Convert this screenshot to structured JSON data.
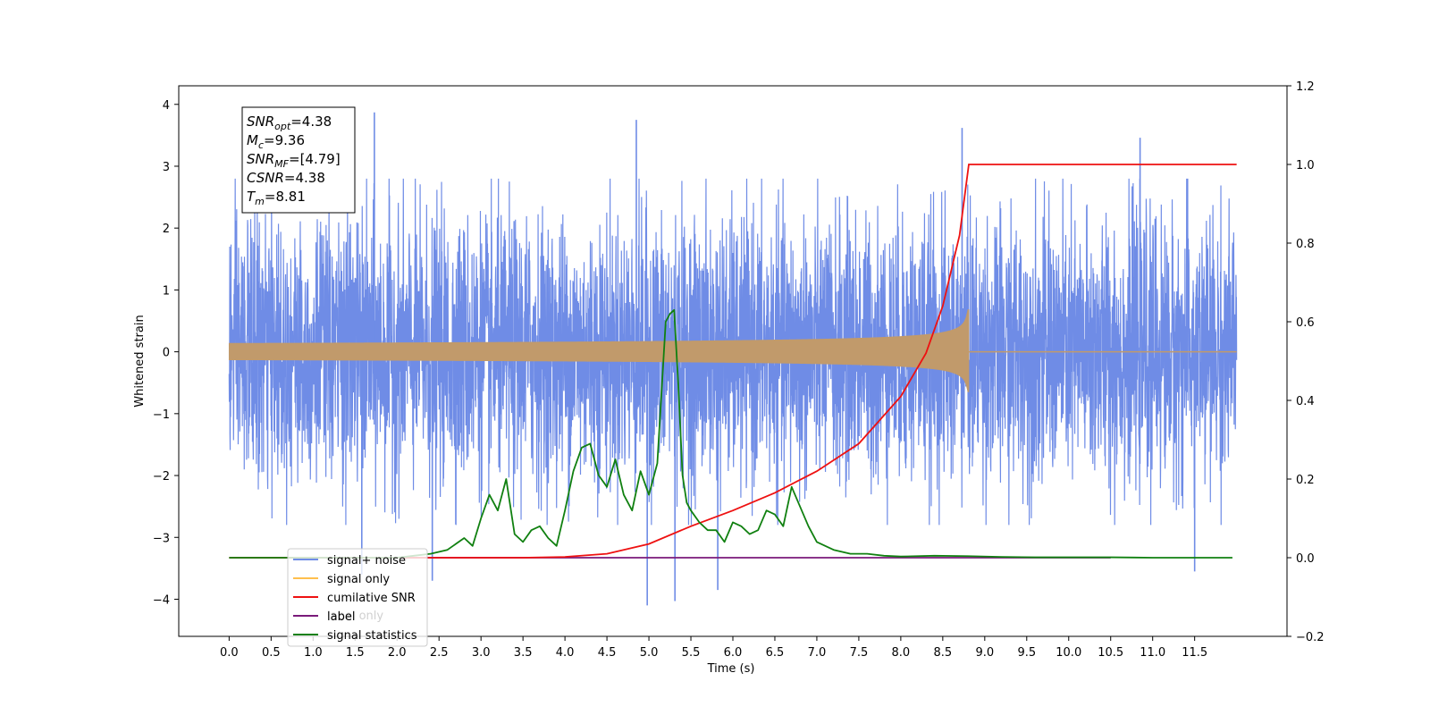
{
  "chart_data": {
    "type": "line",
    "xlabel": "Time (s)",
    "ylabel": "Whitened strain",
    "xlim": [
      -0.6,
      12.6
    ],
    "ylim": [
      -4.6,
      4.3
    ],
    "ylim_right": [
      -0.2,
      1.2
    ],
    "x_ticks": [
      0.0,
      0.5,
      1.0,
      1.5,
      2.0,
      2.5,
      3.0,
      3.5,
      4.0,
      4.5,
      5.0,
      5.5,
      6.0,
      6.5,
      7.0,
      7.5,
      8.0,
      8.5,
      9.0,
      9.5,
      10.0,
      10.5,
      11.0,
      11.5
    ],
    "x_tick_labels": [
      "0.0",
      "0.5",
      "1.0",
      "1.5",
      "2.0",
      "2.5",
      "3.0",
      "3.5",
      "4.0",
      "4.5",
      "5.0",
      "5.5",
      "6.0",
      "6.5",
      "7.0",
      "7.5",
      "8.0",
      "8.5",
      "9.0",
      "9.5",
      "10.0",
      "10.5",
      "11.0",
      "11.5"
    ],
    "y_ticks": [
      -4,
      -3,
      -2,
      -1,
      0,
      1,
      2,
      3,
      4
    ],
    "y_tick_labels": [
      "−4",
      "−3",
      "−2",
      "−1",
      "0",
      "1",
      "2",
      "3",
      "4"
    ],
    "y_right_ticks": [
      -0.2,
      0.0,
      0.2,
      0.4,
      0.6,
      0.8,
      1.0,
      1.2
    ],
    "y_right_tick_labels": [
      "−0.2",
      "0.0",
      "0.2",
      "0.4",
      "0.6",
      "0.8",
      "1.0",
      "1.2"
    ],
    "grid": false,
    "legend_position": "lower-left",
    "annotation": [
      {
        "base": "SNR",
        "sub": "opt",
        "value": "=4.38"
      },
      {
        "base": "M",
        "sub": "c",
        "value": "=9.36"
      },
      {
        "base": "SNR",
        "sub": "MF",
        "value": "=[4.79]"
      },
      {
        "base": "CSNR",
        "sub": "",
        "value": "=4.38"
      },
      {
        "base": "T",
        "sub": "m",
        "value": "=8.81"
      }
    ],
    "series": [
      {
        "name": "signal+ noise",
        "axis": "left",
        "color": "#6f8ce6",
        "x_range": [
          0.0,
          12.0
        ],
        "typical_range": [
          -2.5,
          2.5
        ],
        "extremes": [
          [
            1.73,
            3.87
          ],
          [
            4.85,
            3.75
          ],
          [
            8.73,
            3.62
          ],
          [
            10.85,
            3.46
          ],
          [
            4.98,
            -4.1
          ],
          [
            5.31,
            -4.03
          ],
          [
            5.82,
            -3.85
          ],
          [
            11.5,
            -3.55
          ],
          [
            2.42,
            -3.7
          ],
          [
            1.58,
            -3.6
          ]
        ]
      },
      {
        "name": "signal only",
        "axis": "left",
        "color": "#ffbf4d",
        "x_range": [
          0.0,
          12.0
        ],
        "merger_time": 8.81,
        "peak_amplitude": 0.68
      },
      {
        "name": "cumilative SNR",
        "axis": "right",
        "color": "#ee1111",
        "x": [
          0.0,
          3.5,
          4.0,
          4.5,
          5.0,
          5.5,
          6.0,
          6.5,
          7.0,
          7.5,
          8.0,
          8.3,
          8.5,
          8.7,
          8.81,
          9.0,
          12.0
        ],
        "y": [
          0.0,
          0.0,
          0.002,
          0.01,
          0.035,
          0.08,
          0.12,
          0.165,
          0.22,
          0.29,
          0.41,
          0.52,
          0.64,
          0.82,
          1.0,
          1.0,
          1.0
        ]
      },
      {
        "name": "label",
        "axis": "right",
        "color": "#7a1a7a",
        "x": [
          2.0,
          10.5
        ],
        "y": [
          0.0,
          0.0
        ]
      },
      {
        "name": "signal statistics",
        "axis": "right",
        "color": "#108010",
        "x": [
          0.0,
          2.0,
          2.2,
          2.4,
          2.6,
          2.8,
          2.9,
          3.0,
          3.1,
          3.2,
          3.3,
          3.4,
          3.5,
          3.6,
          3.7,
          3.8,
          3.9,
          4.0,
          4.1,
          4.2,
          4.3,
          4.4,
          4.5,
          4.6,
          4.7,
          4.8,
          4.9,
          5.0,
          5.1,
          5.2,
          5.25,
          5.3,
          5.35,
          5.4,
          5.45,
          5.5,
          5.6,
          5.7,
          5.8,
          5.9,
          6.0,
          6.1,
          6.2,
          6.3,
          6.4,
          6.5,
          6.6,
          6.7,
          6.8,
          6.9,
          7.0,
          7.1,
          7.2,
          7.4,
          7.6,
          7.8,
          8.0,
          8.4,
          8.8,
          9.2,
          9.6,
          10.0,
          10.5,
          11.0,
          11.5,
          11.95
        ],
        "y": [
          0.0,
          0.0,
          0.005,
          0.01,
          0.02,
          0.05,
          0.03,
          0.1,
          0.16,
          0.12,
          0.2,
          0.06,
          0.04,
          0.07,
          0.08,
          0.05,
          0.03,
          0.12,
          0.22,
          0.28,
          0.29,
          0.21,
          0.18,
          0.25,
          0.16,
          0.12,
          0.22,
          0.16,
          0.24,
          0.6,
          0.62,
          0.63,
          0.44,
          0.21,
          0.14,
          0.12,
          0.09,
          0.07,
          0.07,
          0.04,
          0.09,
          0.08,
          0.06,
          0.07,
          0.12,
          0.11,
          0.08,
          0.18,
          0.13,
          0.08,
          0.04,
          0.03,
          0.02,
          0.01,
          0.01,
          0.005,
          0.003,
          0.005,
          0.004,
          0.002,
          0.001,
          0.001,
          0.001,
          0.0,
          0.0,
          0.0
        ]
      }
    ]
  },
  "legend_overlay_text": "label only"
}
